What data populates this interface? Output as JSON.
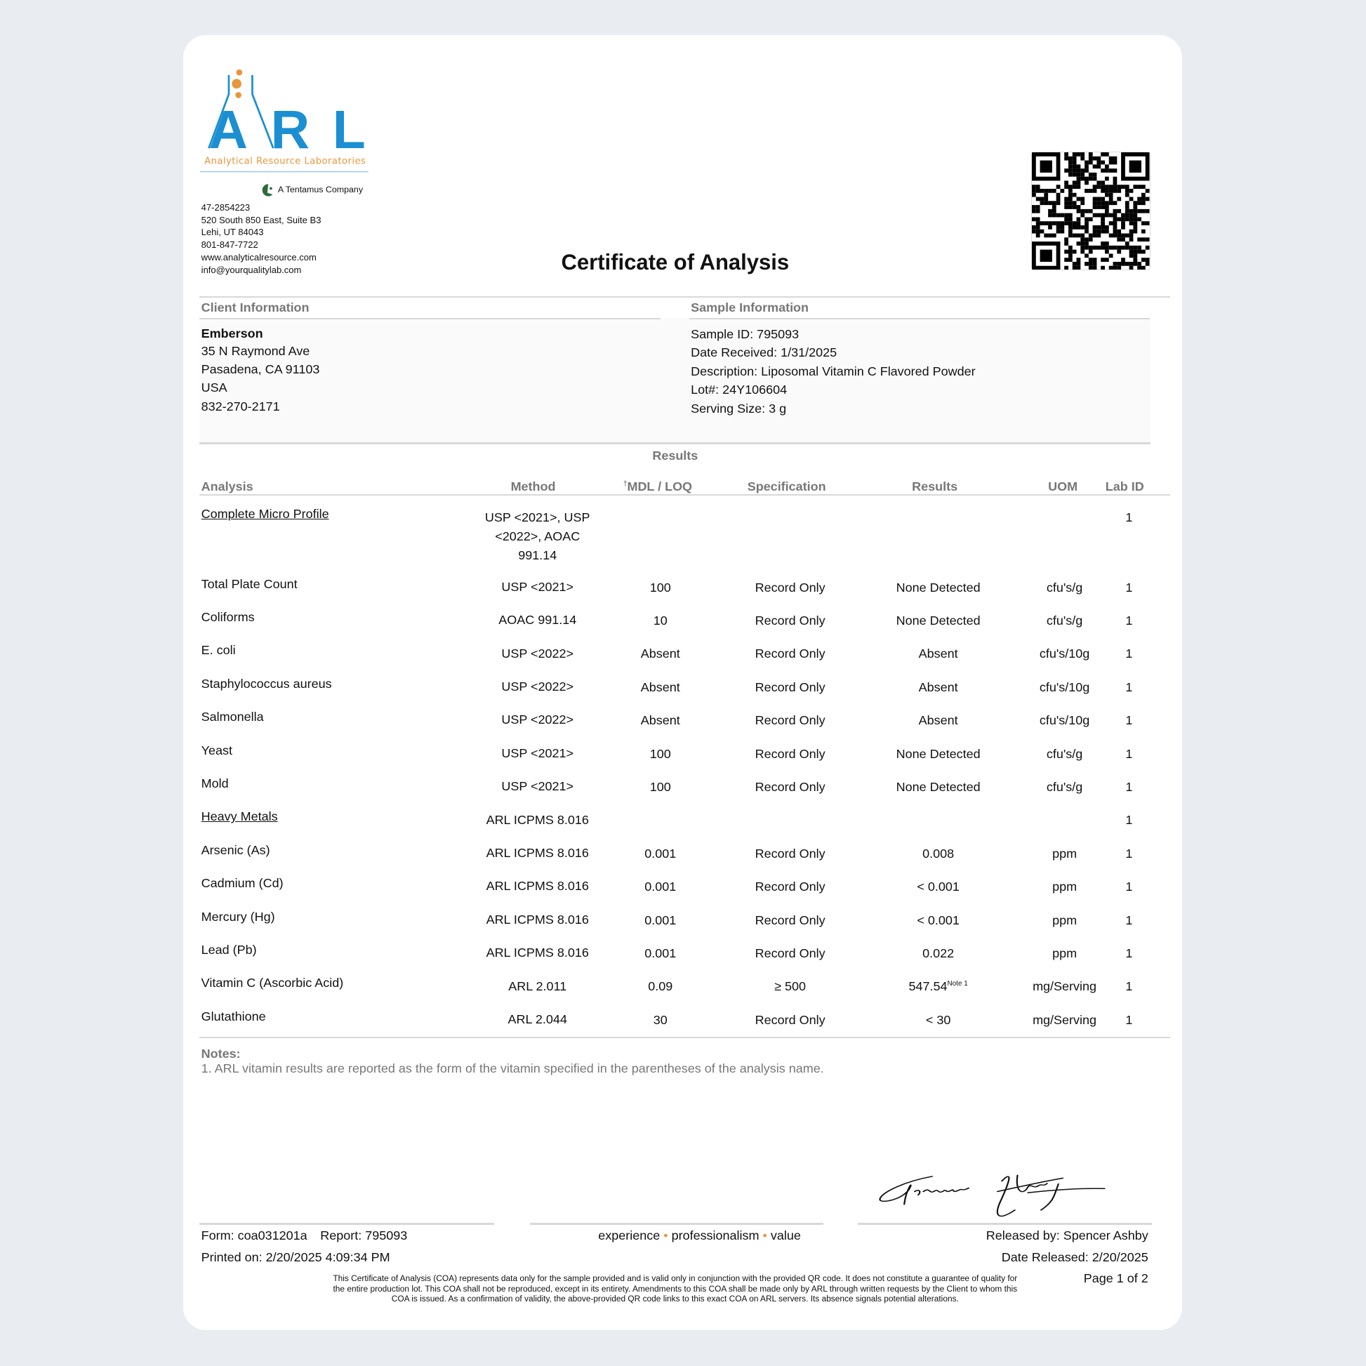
{
  "brand": {
    "logo_letters": "ARL",
    "logo_subtitle": "Analytical Resource Laboratories",
    "parent": "A Tentamus Company",
    "primary_color": "#1b8fd2",
    "accent_color": "#e8963a"
  },
  "lab_contact": [
    "47-2854223",
    "520 South 850 East, Suite B3",
    "Lehi, UT 84043",
    "801-847-7722",
    "www.analyticalresource.com",
    "info@yourqualitylab.com"
  ],
  "title": "Certificate of Analysis",
  "client": {
    "heading": "Client Information",
    "name": "Emberson",
    "lines": [
      "35 N Raymond Ave",
      "Pasadena, CA  91103",
      "USA",
      "832-270-2171"
    ]
  },
  "sample": {
    "heading": "Sample Information",
    "lines": [
      "Sample ID: 795093",
      "Date Received: 1/31/2025",
      "Description: Liposomal Vitamin C Flavored Powder",
      "Lot#: 24Y106604",
      "Serving Size: 3 g"
    ]
  },
  "results": {
    "heading": "Results",
    "columns": {
      "analysis": "Analysis",
      "method": "Method",
      "mdl_mark": "†",
      "mdl": "MDL / LOQ",
      "spec": "Specification",
      "result": "Results",
      "uom": "UOM",
      "lab": "Lab ID"
    },
    "rows": [
      {
        "analysis": "Complete Micro Profile",
        "group": true,
        "method": [
          "USP <2021>, USP",
          "<2022>, AOAC",
          "991.14"
        ],
        "mdl": "",
        "spec": "",
        "result": "",
        "note": "",
        "uom": "",
        "lab": "1"
      },
      {
        "analysis": "Total Plate Count",
        "method": [
          "USP <2021>"
        ],
        "mdl": "100",
        "spec": "Record Only",
        "result": "None Detected",
        "note": "",
        "uom": "cfu's/g",
        "lab": "1"
      },
      {
        "analysis": "Coliforms",
        "method": [
          "AOAC 991.14"
        ],
        "mdl": "10",
        "spec": "Record Only",
        "result": "None Detected",
        "note": "",
        "uom": "cfu's/g",
        "lab": "1"
      },
      {
        "analysis": "E. coli",
        "method": [
          "USP <2022>"
        ],
        "mdl": "Absent",
        "spec": "Record Only",
        "result": "Absent",
        "note": "",
        "uom": "cfu's/10g",
        "lab": "1"
      },
      {
        "analysis": "Staphylococcus aureus",
        "method": [
          "USP <2022>"
        ],
        "mdl": "Absent",
        "spec": "Record Only",
        "result": "Absent",
        "note": "",
        "uom": "cfu's/10g",
        "lab": "1"
      },
      {
        "analysis": "Salmonella",
        "method": [
          "USP <2022>"
        ],
        "mdl": "Absent",
        "spec": "Record Only",
        "result": "Absent",
        "note": "",
        "uom": "cfu's/10g",
        "lab": "1"
      },
      {
        "analysis": "Yeast",
        "method": [
          "USP <2021>"
        ],
        "mdl": "100",
        "spec": "Record Only",
        "result": "None Detected",
        "note": "",
        "uom": "cfu's/g",
        "lab": "1"
      },
      {
        "analysis": "Mold",
        "method": [
          "USP <2021>"
        ],
        "mdl": "100",
        "spec": "Record Only",
        "result": "None Detected",
        "note": "",
        "uom": "cfu's/g",
        "lab": "1"
      },
      {
        "analysis": "Heavy Metals",
        "group": true,
        "method": [
          "ARL ICPMS 8.016"
        ],
        "mdl": "",
        "spec": "",
        "result": "",
        "note": "",
        "uom": "",
        "lab": "1"
      },
      {
        "analysis": "Arsenic (As)",
        "method": [
          "ARL ICPMS 8.016"
        ],
        "mdl": "0.001",
        "spec": "Record Only",
        "result": "0.008",
        "note": "",
        "uom": "ppm",
        "lab": "1"
      },
      {
        "analysis": "Cadmium (Cd)",
        "method": [
          "ARL ICPMS 8.016"
        ],
        "mdl": "0.001",
        "spec": "Record Only",
        "result": "< 0.001",
        "note": "",
        "uom": "ppm",
        "lab": "1"
      },
      {
        "analysis": "Mercury (Hg)",
        "method": [
          "ARL ICPMS 8.016"
        ],
        "mdl": "0.001",
        "spec": "Record Only",
        "result": "< 0.001",
        "note": "",
        "uom": "ppm",
        "lab": "1"
      },
      {
        "analysis": "Lead (Pb)",
        "method": [
          "ARL ICPMS 8.016"
        ],
        "mdl": "0.001",
        "spec": "Record Only",
        "result": "0.022",
        "note": "",
        "uom": "ppm",
        "lab": "1"
      },
      {
        "analysis": "Vitamin C (Ascorbic Acid)",
        "method": [
          "ARL 2.011"
        ],
        "mdl": "0.09",
        "spec": "≥ 500",
        "result": "547.54",
        "note": "Note 1",
        "uom": "mg/Serving",
        "lab": "1"
      },
      {
        "analysis": "Glutathione",
        "method": [
          "ARL 2.044"
        ],
        "mdl": "30",
        "spec": "Record Only",
        "result": "< 30",
        "note": "",
        "uom": "mg/Serving",
        "lab": "1"
      }
    ]
  },
  "notes": {
    "heading": "Notes:",
    "items": [
      "1. ARL vitamin results are reported as the form of the vitamin specified in the parentheses of the analysis name."
    ]
  },
  "footer": {
    "form": "Form: coa031201a",
    "report": "Report: 795093",
    "printed": "Printed on: 2/20/2025 4:09:34 PM",
    "tagline": [
      "experience",
      "professionalism",
      "value"
    ],
    "separator": "•",
    "released_by": "Released by: Spencer Ashby",
    "date_released": "Date Released: 2/20/2025",
    "page": "Page 1 of 2",
    "signature": "Spencer Ashby",
    "disclaimer": "This Certificate of Analysis (COA) represents data only for the sample provided and is valid only in conjunction with the provided QR code. It does not constitute a guarantee of quality for the entire production lot. This COA shall not be reproduced, except in its entirety. Amendments to this COA shall be made only by ARL through written requests by the Client to whom this COA is issued. As a confirmation of validity, the above-provided QR code links to this exact COA on ARL servers. Its absence signals potential alterations."
  }
}
